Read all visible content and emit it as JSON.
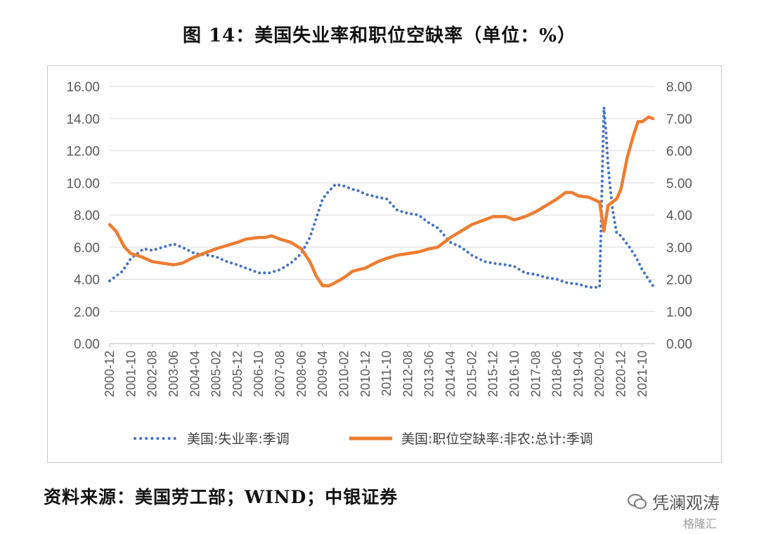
{
  "title": "图 14：美国失业率和职位空缺率（单位：%）",
  "source": "资料来源：美国劳工部；WIND；中银证券",
  "watermark": {
    "account": "凭澜观涛",
    "site": "格隆汇"
  },
  "colors": {
    "unemployment": "#4472C4",
    "job_openings": "#ED7D31",
    "grid": "#d9d9d9",
    "axis_text": "#595959"
  },
  "chart_data": {
    "type": "line",
    "x_tick_labels": [
      "2000-12",
      "2001-10",
      "2002-08",
      "2003-06",
      "2004-04",
      "2005-02",
      "2005-12",
      "2006-10",
      "2007-08",
      "2008-06",
      "2009-04",
      "2010-02",
      "2010-12",
      "2011-10",
      "2012-08",
      "2013-06",
      "2014-04",
      "2015-02",
      "2015-12",
      "2016-10",
      "2017-08",
      "2018-06",
      "2019-04",
      "2020-02",
      "2020-12",
      "2021-10"
    ],
    "y_left": {
      "ticks": [
        "0.00",
        "2.00",
        "4.00",
        "6.00",
        "8.00",
        "10.00",
        "12.00",
        "14.00",
        "16.00"
      ],
      "lim": [
        0,
        16
      ]
    },
    "y_right": {
      "ticks": [
        "0.00",
        "1.00",
        "2.00",
        "3.00",
        "4.00",
        "5.00",
        "6.00",
        "7.00",
        "8.00"
      ],
      "lim": [
        0,
        8
      ]
    },
    "grid": true,
    "legend_position": "bottom",
    "series": [
      {
        "name": "美国:失业率:季调",
        "axis": "left",
        "style": "dotted",
        "x": [
          "2000-12",
          "2001-06",
          "2001-10",
          "2002-04",
          "2002-08",
          "2003-01",
          "2003-06",
          "2003-10",
          "2004-04",
          "2004-10",
          "2005-02",
          "2005-07",
          "2005-12",
          "2006-06",
          "2006-10",
          "2007-03",
          "2007-08",
          "2008-01",
          "2008-06",
          "2008-10",
          "2009-01",
          "2009-04",
          "2009-07",
          "2009-10",
          "2010-02",
          "2010-06",
          "2010-09",
          "2010-12",
          "2011-06",
          "2011-10",
          "2012-03",
          "2012-08",
          "2013-01",
          "2013-06",
          "2013-10",
          "2014-04",
          "2014-09",
          "2015-02",
          "2015-08",
          "2015-12",
          "2016-06",
          "2016-10",
          "2017-03",
          "2017-08",
          "2018-01",
          "2018-06",
          "2018-10",
          "2019-04",
          "2019-09",
          "2020-02",
          "2020-04",
          "2020-05",
          "2020-06",
          "2020-08",
          "2020-10",
          "2020-12",
          "2021-04",
          "2021-07",
          "2021-10",
          "2022-01",
          "2022-03"
        ],
        "values": [
          3.9,
          4.5,
          5.3,
          5.9,
          5.8,
          6.0,
          6.2,
          6.0,
          5.6,
          5.5,
          5.4,
          5.1,
          4.9,
          4.6,
          4.4,
          4.4,
          4.6,
          5.0,
          5.6,
          6.6,
          7.8,
          9.0,
          9.5,
          9.9,
          9.8,
          9.6,
          9.5,
          9.3,
          9.1,
          9.0,
          8.3,
          8.1,
          8.0,
          7.5,
          7.2,
          6.3,
          6.0,
          5.5,
          5.1,
          5.0,
          4.9,
          4.8,
          4.4,
          4.3,
          4.1,
          4.0,
          3.8,
          3.7,
          3.5,
          3.5,
          14.7,
          13.2,
          11.0,
          8.4,
          6.9,
          6.7,
          6.0,
          5.4,
          4.6,
          4.0,
          3.6
        ]
      },
      {
        "name": "美国:职位空缺率:非农:总计:季调",
        "axis": "right",
        "style": "solid",
        "x": [
          "2000-12",
          "2001-03",
          "2001-07",
          "2001-10",
          "2002-03",
          "2002-08",
          "2003-01",
          "2003-06",
          "2003-10",
          "2004-04",
          "2004-10",
          "2005-02",
          "2005-07",
          "2005-12",
          "2006-04",
          "2006-10",
          "2007-01",
          "2007-04",
          "2007-08",
          "2008-01",
          "2008-06",
          "2008-10",
          "2009-01",
          "2009-04",
          "2009-07",
          "2009-10",
          "2010-02",
          "2010-06",
          "2010-09",
          "2010-12",
          "2011-06",
          "2011-10",
          "2012-03",
          "2012-08",
          "2013-01",
          "2013-06",
          "2013-10",
          "2014-04",
          "2014-09",
          "2015-02",
          "2015-08",
          "2015-12",
          "2016-06",
          "2016-10",
          "2017-03",
          "2017-08",
          "2018-01",
          "2018-06",
          "2018-10",
          "2019-01",
          "2019-04",
          "2019-09",
          "2020-02",
          "2020-04",
          "2020-06",
          "2020-10",
          "2020-12",
          "2021-03",
          "2021-06",
          "2021-08",
          "2021-10",
          "2022-01",
          "2022-03"
        ],
        "values": [
          3.7,
          3.5,
          3.0,
          2.8,
          2.7,
          2.55,
          2.5,
          2.45,
          2.5,
          2.7,
          2.85,
          2.95,
          3.05,
          3.15,
          3.25,
          3.3,
          3.3,
          3.35,
          3.25,
          3.15,
          2.95,
          2.55,
          2.1,
          1.8,
          1.8,
          1.9,
          2.05,
          2.25,
          2.3,
          2.35,
          2.55,
          2.65,
          2.75,
          2.8,
          2.85,
          2.95,
          3.0,
          3.3,
          3.5,
          3.7,
          3.85,
          3.95,
          3.95,
          3.85,
          3.95,
          4.1,
          4.3,
          4.5,
          4.7,
          4.7,
          4.6,
          4.55,
          4.4,
          3.5,
          4.3,
          4.5,
          4.8,
          5.8,
          6.5,
          6.9,
          6.9,
          7.05,
          7.0
        ]
      }
    ]
  }
}
